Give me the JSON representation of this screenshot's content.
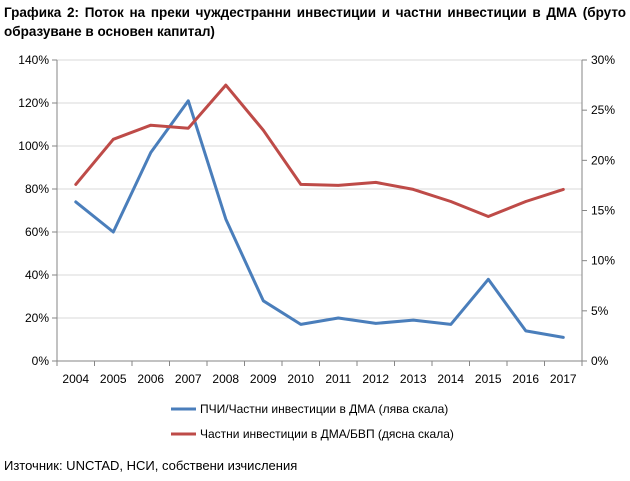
{
  "title": "Графика 2: Поток на преки чуждестранни инвестиции и частни инвестиции в ДМА (бруто образуване в основен капитал)",
  "source": "Източник: UNCTAD, НСИ, собствени изчисления",
  "chart_data": {
    "type": "line",
    "title": "Графика 2: Поток на преки чуждестранни инвестиции и частни инвестиции в ДМА (бруто образуване в основен капитал)",
    "xlabel": "",
    "ylabel": "",
    "categories": [
      "2004",
      "2005",
      "2006",
      "2007",
      "2008",
      "2009",
      "2010",
      "2011",
      "2012",
      "2013",
      "2014",
      "2015",
      "2016",
      "2017"
    ],
    "y_left": {
      "lim": [
        0,
        140
      ],
      "ticks": [
        0,
        20,
        40,
        60,
        80,
        100,
        120,
        140
      ],
      "tick_labels": [
        "0%",
        "20%",
        "40%",
        "60%",
        "80%",
        "100%",
        "120%",
        "140%"
      ]
    },
    "y_right": {
      "lim": [
        0,
        30
      ],
      "ticks": [
        0,
        5,
        10,
        15,
        20,
        25,
        30
      ],
      "tick_labels": [
        "0%",
        "5%",
        "10%",
        "15%",
        "20%",
        "25%",
        "30%"
      ]
    },
    "grid": true,
    "legend_position": "bottom",
    "series": [
      {
        "name": "ПЧИ/Частни инвестиции в ДМА (лява скала)",
        "axis": "left",
        "color": "#4a7ebb",
        "values": [
          74,
          60,
          97,
          121,
          66,
          28,
          17,
          20,
          17.5,
          19,
          17,
          38,
          14,
          11
        ]
      },
      {
        "name": "Частни инвестиции в ДМА/БВП (дясна скала)",
        "axis": "right",
        "color": "#be4b48",
        "values": [
          17.6,
          22.1,
          23.5,
          23.2,
          27.5,
          23.0,
          17.6,
          17.5,
          17.8,
          17.1,
          15.9,
          14.4,
          15.9,
          17.1
        ]
      }
    ]
  }
}
